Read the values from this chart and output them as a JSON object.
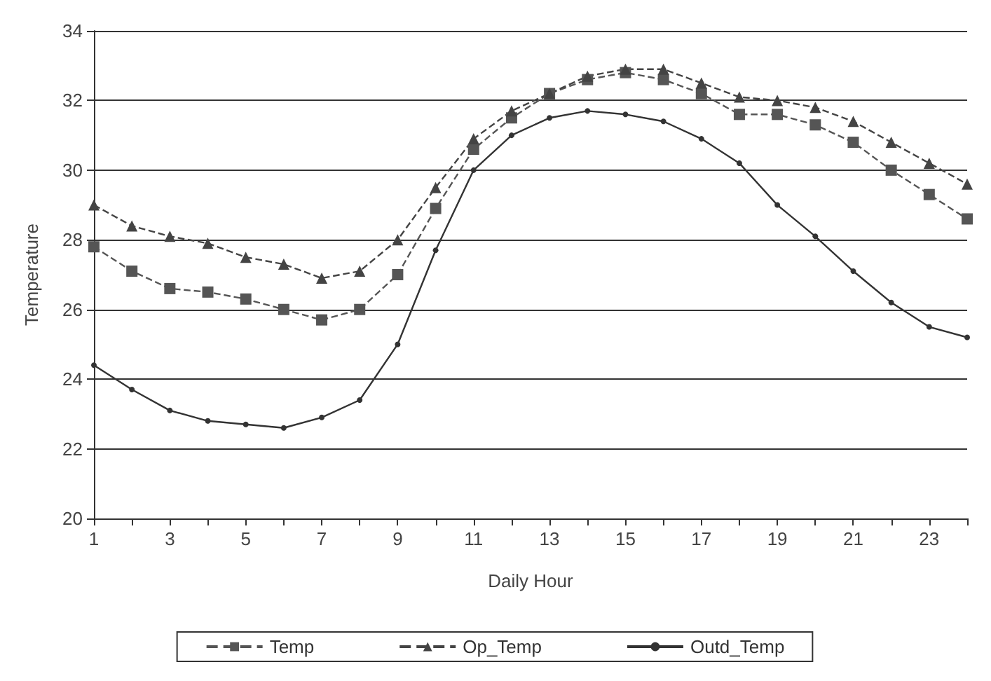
{
  "chart_data": {
    "type": "line",
    "xlabel": "Daily Hour",
    "ylabel": "Temperature",
    "x": [
      1,
      2,
      3,
      4,
      5,
      6,
      7,
      8,
      9,
      10,
      11,
      12,
      13,
      14,
      15,
      16,
      17,
      18,
      19,
      20,
      21,
      22,
      23,
      24
    ],
    "xlim": [
      1,
      24
    ],
    "xticks": [
      1,
      {
        "value": 2,
        "label": null
      },
      3,
      {
        "value": 4,
        "label": null
      },
      5,
      {
        "value": 6,
        "label": null
      },
      7,
      {
        "value": 8,
        "label": null
      },
      9,
      {
        "value": 10,
        "label": null
      },
      11,
      {
        "value": 12,
        "label": null
      },
      13,
      {
        "value": 14,
        "label": null
      },
      15,
      {
        "value": 16,
        "label": null
      },
      17,
      {
        "value": 18,
        "label": null
      },
      19,
      {
        "value": 20,
        "label": null
      },
      21,
      {
        "value": 22,
        "label": null
      },
      23,
      {
        "value": 24,
        "label": null
      }
    ],
    "series": [
      {
        "name": "Temp",
        "color": "#555555",
        "marker": "square",
        "line_style": "dashed",
        "values": [
          27.8,
          27.1,
          26.6,
          26.5,
          26.3,
          26.0,
          25.7,
          26.0,
          27.0,
          28.9,
          30.6,
          31.5,
          32.2,
          32.6,
          32.8,
          32.6,
          32.2,
          31.6,
          31.6,
          31.3,
          30.8,
          30.0,
          29.3,
          28.6
        ]
      },
      {
        "name": "Op_Temp",
        "color": "#444444",
        "marker": "triangle",
        "line_style": "dashed",
        "values": [
          29.0,
          28.4,
          28.1,
          27.9,
          27.5,
          27.3,
          26.9,
          27.1,
          28.0,
          29.5,
          30.9,
          31.7,
          32.2,
          32.7,
          32.9,
          32.9,
          32.5,
          32.1,
          32.0,
          31.8,
          31.4,
          30.8,
          30.2,
          29.6
        ]
      },
      {
        "name": "Outd_Temp",
        "color": "#333333",
        "marker": "circle",
        "line_style": "solid",
        "values": [
          24.4,
          23.7,
          23.1,
          22.8,
          22.7,
          22.6,
          22.9,
          23.4,
          25.0,
          27.7,
          30.0,
          31.0,
          31.5,
          31.7,
          31.6,
          31.4,
          30.9,
          30.2,
          29.0,
          28.1,
          27.1,
          26.2,
          25.5,
          25.2
        ]
      }
    ],
    "ylim": [
      20,
      34
    ],
    "yticks": [
      20,
      22,
      24,
      26,
      28,
      30,
      32,
      34
    ],
    "grid": "y",
    "legend": "bottom"
  }
}
